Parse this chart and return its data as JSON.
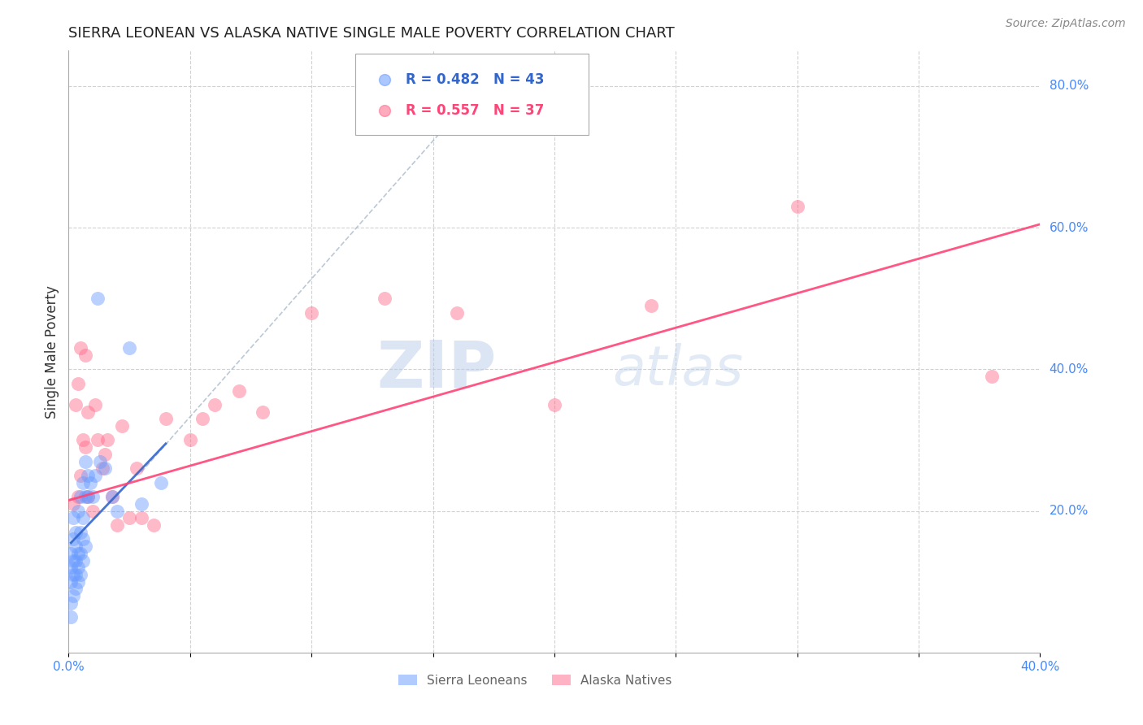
{
  "title": "SIERRA LEONEAN VS ALASKA NATIVE SINGLE MALE POVERTY CORRELATION CHART",
  "source": "Source: ZipAtlas.com",
  "ylabel": "Single Male Poverty",
  "xlim": [
    0.0,
    0.4
  ],
  "ylim": [
    0.0,
    0.85
  ],
  "xticks": [
    0.0,
    0.05,
    0.1,
    0.15,
    0.2,
    0.25,
    0.3,
    0.35,
    0.4
  ],
  "xticklabels": [
    "0.0%",
    "",
    "",
    "",
    "",
    "",
    "",
    "",
    "40.0%"
  ],
  "ytick_right": [
    0.2,
    0.4,
    0.6,
    0.8
  ],
  "ytick_right_labels": [
    "20.0%",
    "40.0%",
    "60.0%",
    "80.0%"
  ],
  "grid_color": "#cccccc",
  "background_color": "#ffffff",
  "watermark_zip": "ZIP",
  "watermark_atlas": "atlas",
  "legend_r1": "R = 0.482",
  "legend_n1": "N = 43",
  "legend_r2": "R = 0.557",
  "legend_n2": "N = 37",
  "series1_color": "#6699ff",
  "series2_color": "#ff6688",
  "series1_label": "Sierra Leoneans",
  "series2_label": "Alaska Natives",
  "axis_color": "#4488ff",
  "blue_scatter_x": [
    0.001,
    0.001,
    0.001,
    0.001,
    0.001,
    0.002,
    0.002,
    0.002,
    0.002,
    0.002,
    0.003,
    0.003,
    0.003,
    0.003,
    0.003,
    0.004,
    0.004,
    0.004,
    0.004,
    0.005,
    0.005,
    0.005,
    0.005,
    0.006,
    0.006,
    0.006,
    0.006,
    0.007,
    0.007,
    0.007,
    0.008,
    0.008,
    0.009,
    0.01,
    0.011,
    0.012,
    0.013,
    0.015,
    0.018,
    0.02,
    0.025,
    0.03,
    0.038
  ],
  "blue_scatter_y": [
    0.05,
    0.07,
    0.1,
    0.12,
    0.14,
    0.08,
    0.11,
    0.13,
    0.16,
    0.19,
    0.09,
    0.11,
    0.13,
    0.15,
    0.17,
    0.1,
    0.12,
    0.14,
    0.2,
    0.11,
    0.14,
    0.17,
    0.22,
    0.13,
    0.16,
    0.19,
    0.24,
    0.15,
    0.22,
    0.27,
    0.22,
    0.25,
    0.24,
    0.22,
    0.25,
    0.5,
    0.27,
    0.26,
    0.22,
    0.2,
    0.43,
    0.21,
    0.24
  ],
  "pink_scatter_x": [
    0.002,
    0.003,
    0.004,
    0.004,
    0.005,
    0.005,
    0.006,
    0.007,
    0.007,
    0.008,
    0.008,
    0.01,
    0.011,
    0.012,
    0.014,
    0.015,
    0.016,
    0.018,
    0.02,
    0.022,
    0.025,
    0.028,
    0.03,
    0.035,
    0.04,
    0.05,
    0.055,
    0.06,
    0.07,
    0.08,
    0.1,
    0.13,
    0.16,
    0.2,
    0.24,
    0.3,
    0.38
  ],
  "pink_scatter_y": [
    0.21,
    0.35,
    0.22,
    0.38,
    0.25,
    0.43,
    0.3,
    0.29,
    0.42,
    0.22,
    0.34,
    0.2,
    0.35,
    0.3,
    0.26,
    0.28,
    0.3,
    0.22,
    0.18,
    0.32,
    0.19,
    0.26,
    0.19,
    0.18,
    0.33,
    0.3,
    0.33,
    0.35,
    0.37,
    0.34,
    0.48,
    0.5,
    0.48,
    0.35,
    0.49,
    0.63,
    0.39
  ],
  "blue_solid_line_x": [
    0.001,
    0.04
  ],
  "blue_solid_line_y": [
    0.155,
    0.295
  ],
  "gray_dash_line_x": [
    0.03,
    0.175
  ],
  "gray_dash_line_y": [
    0.255,
    0.82
  ],
  "pink_line_x": [
    0.0,
    0.4
  ],
  "pink_line_y": [
    0.215,
    0.605
  ]
}
